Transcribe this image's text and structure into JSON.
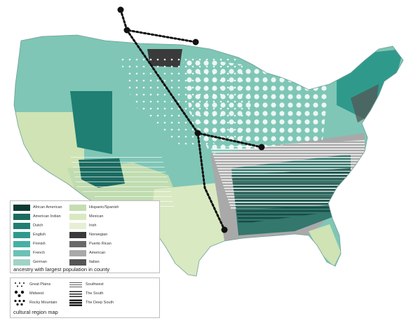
{
  "map": {
    "colors": {
      "background": "#ffffff",
      "teal_light": "#7fc6b6",
      "teal_mid": "#4fae9e",
      "teal_dark": "#1f6f63",
      "green_pale": "#cfe3b5",
      "hispanic": "#c0dcb0",
      "gray": "#a9a9a9",
      "dark_gray": "#4b4b4b",
      "route": "#111111"
    }
  },
  "ancestry_legend": {
    "title": "ancestry with largest population in county",
    "items": [
      {
        "label": "African American",
        "color": "#0d3b33"
      },
      {
        "label": "Hispanic/Spanish",
        "color": "#c5ddb0"
      },
      {
        "label": "American Indian",
        "color": "#1b6b61"
      },
      {
        "label": "Mexican",
        "color": "#d9e9c2"
      },
      {
        "label": "Dutch",
        "color": "#1f7f73"
      },
      {
        "label": "Irish",
        "color": "#e6efd4"
      },
      {
        "label": "English",
        "color": "#2f9a8c"
      },
      {
        "label": "Norwegian",
        "color": "#3a3a3a"
      },
      {
        "label": "Finnish",
        "color": "#45b0a4"
      },
      {
        "label": "Puerto Rican",
        "color": "#6a6a6a"
      },
      {
        "label": "French",
        "color": "#6cc1b4"
      },
      {
        "label": "American",
        "color": "#a9a9a9"
      },
      {
        "label": "German",
        "color": "#9fd3c6"
      },
      {
        "label": "Italian",
        "color": "#555555"
      }
    ]
  },
  "region_legend": {
    "title": "cultural region map",
    "items": [
      {
        "label": "Great Plains",
        "pattern": "sparse-dots"
      },
      {
        "label": "Southwest",
        "pattern": "thin-lines"
      },
      {
        "label": "Midwest",
        "pattern": "large-dots"
      },
      {
        "label": "The South",
        "pattern": "medium-lines"
      },
      {
        "label": "Rocky Mountain",
        "pattern": "dense-dots"
      },
      {
        "label": "The Deep South",
        "pattern": "thick-lines"
      }
    ]
  }
}
